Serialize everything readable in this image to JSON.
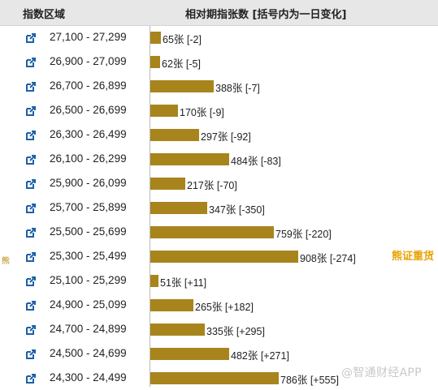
{
  "header": {
    "col_range": "指数区域",
    "col_count": "相对期指张数 [括号内为一日变化]"
  },
  "side_label": "熊",
  "brand": "熊证重货",
  "watermark": "@智通财经APP",
  "colors": {
    "bar": "#a8841c",
    "header_bg": "#e7e7e7",
    "icon": "#1f5fa8"
  },
  "icons": {
    "row_link": "external-link-icon"
  },
  "chart_data": {
    "type": "bar",
    "orientation": "horizontal",
    "categories": [
      "27,100 - 27,299",
      "26,900 - 27,099",
      "26,700 - 26,899",
      "26,500 - 26,699",
      "26,300 - 26,499",
      "26,100 - 26,299",
      "25,900 - 26,099",
      "25,700 - 25,899",
      "25,500 - 25,699",
      "25,300 - 25,499",
      "25,100 - 25,299",
      "24,900 - 25,099",
      "24,700 - 24,899",
      "24,500 - 24,699",
      "24,300 - 24,499"
    ],
    "values": [
      65,
      62,
      388,
      170,
      297,
      484,
      217,
      347,
      759,
      908,
      51,
      265,
      335,
      482,
      786
    ],
    "daily_change": [
      -2,
      -5,
      -7,
      -9,
      -92,
      -83,
      -70,
      -350,
      -220,
      -274,
      11,
      182,
      295,
      271,
      555
    ],
    "labels": [
      "65张 [-2]",
      "62张 [-5]",
      "388张 [-7]",
      "170张 [-9]",
      "297张 [-92]",
      "484张 [-83]",
      "217张 [-70]",
      "347张 [-350]",
      "759张 [-220]",
      "908张 [-274]",
      "51张 [+11]",
      "265张 [+182]",
      "335张 [+295]",
      "482张 [+271]",
      "786张 [+555]"
    ],
    "xlabel": "相对期指张数 [括号内为一日变化]",
    "ylabel": "指数区域",
    "unit": "张",
    "grid": false,
    "legend": "none"
  }
}
